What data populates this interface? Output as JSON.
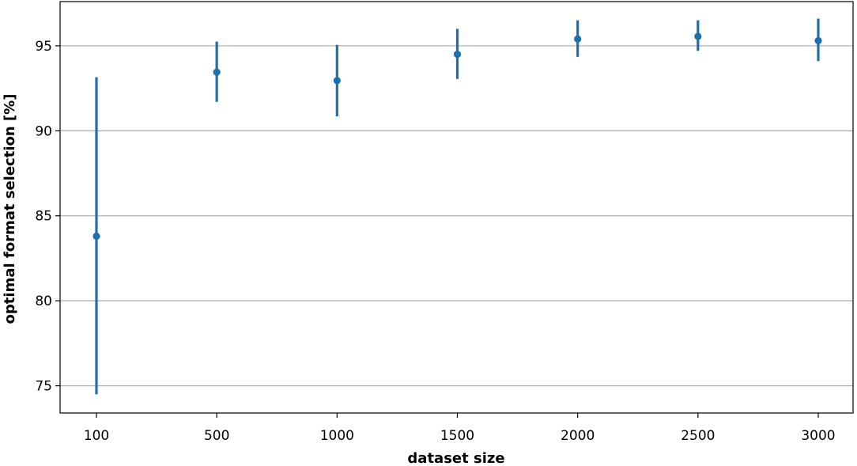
{
  "chart_data": {
    "type": "scatter",
    "title": "",
    "xlabel": "dataset size",
    "ylabel": "optimal format selection [%]",
    "categories": [
      "100",
      "500",
      "1000",
      "1500",
      "2000",
      "2500",
      "3000"
    ],
    "yticks": [
      "75",
      "80",
      "85",
      "90",
      "95"
    ],
    "ylim": [
      73.4,
      97.6
    ],
    "grid": "horizontal",
    "series": [
      {
        "mean": [
          83.8,
          93.45,
          92.95,
          94.5,
          95.4,
          95.55,
          95.3
        ],
        "lower": [
          74.5,
          91.7,
          90.85,
          93.05,
          94.35,
          94.7,
          94.1
        ],
        "upper": [
          93.15,
          95.25,
          95.05,
          96.0,
          96.5,
          96.5,
          96.6
        ]
      }
    ],
    "colors": {
      "series": "#1f6fae",
      "grid": "#b0b0b0",
      "axis": "#000000"
    }
  }
}
